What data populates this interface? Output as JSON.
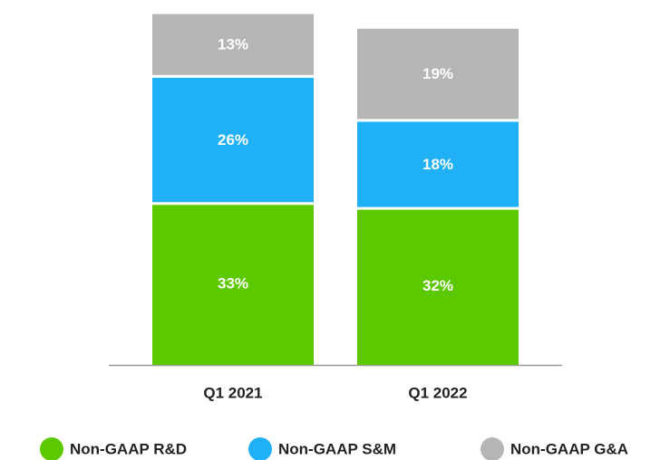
{
  "chart_data": {
    "type": "stacked_bar",
    "categories": [
      "Q1 2021",
      "Q1 2022"
    ],
    "series": [
      {
        "name": "Non-GAAP R&D",
        "color": "#5cc800",
        "values": [
          33,
          32
        ],
        "value_labels": [
          "33%",
          "32%"
        ]
      },
      {
        "name": "Non-GAAP S&M",
        "color": "#1fb0f6",
        "values": [
          26,
          18
        ],
        "value_labels": [
          "26%",
          "18%"
        ]
      },
      {
        "name": "Non-GAAP G&A",
        "color": "#b5b5b5",
        "values": [
          13,
          19
        ],
        "value_labels": [
          "13%",
          "19%"
        ]
      }
    ]
  }
}
